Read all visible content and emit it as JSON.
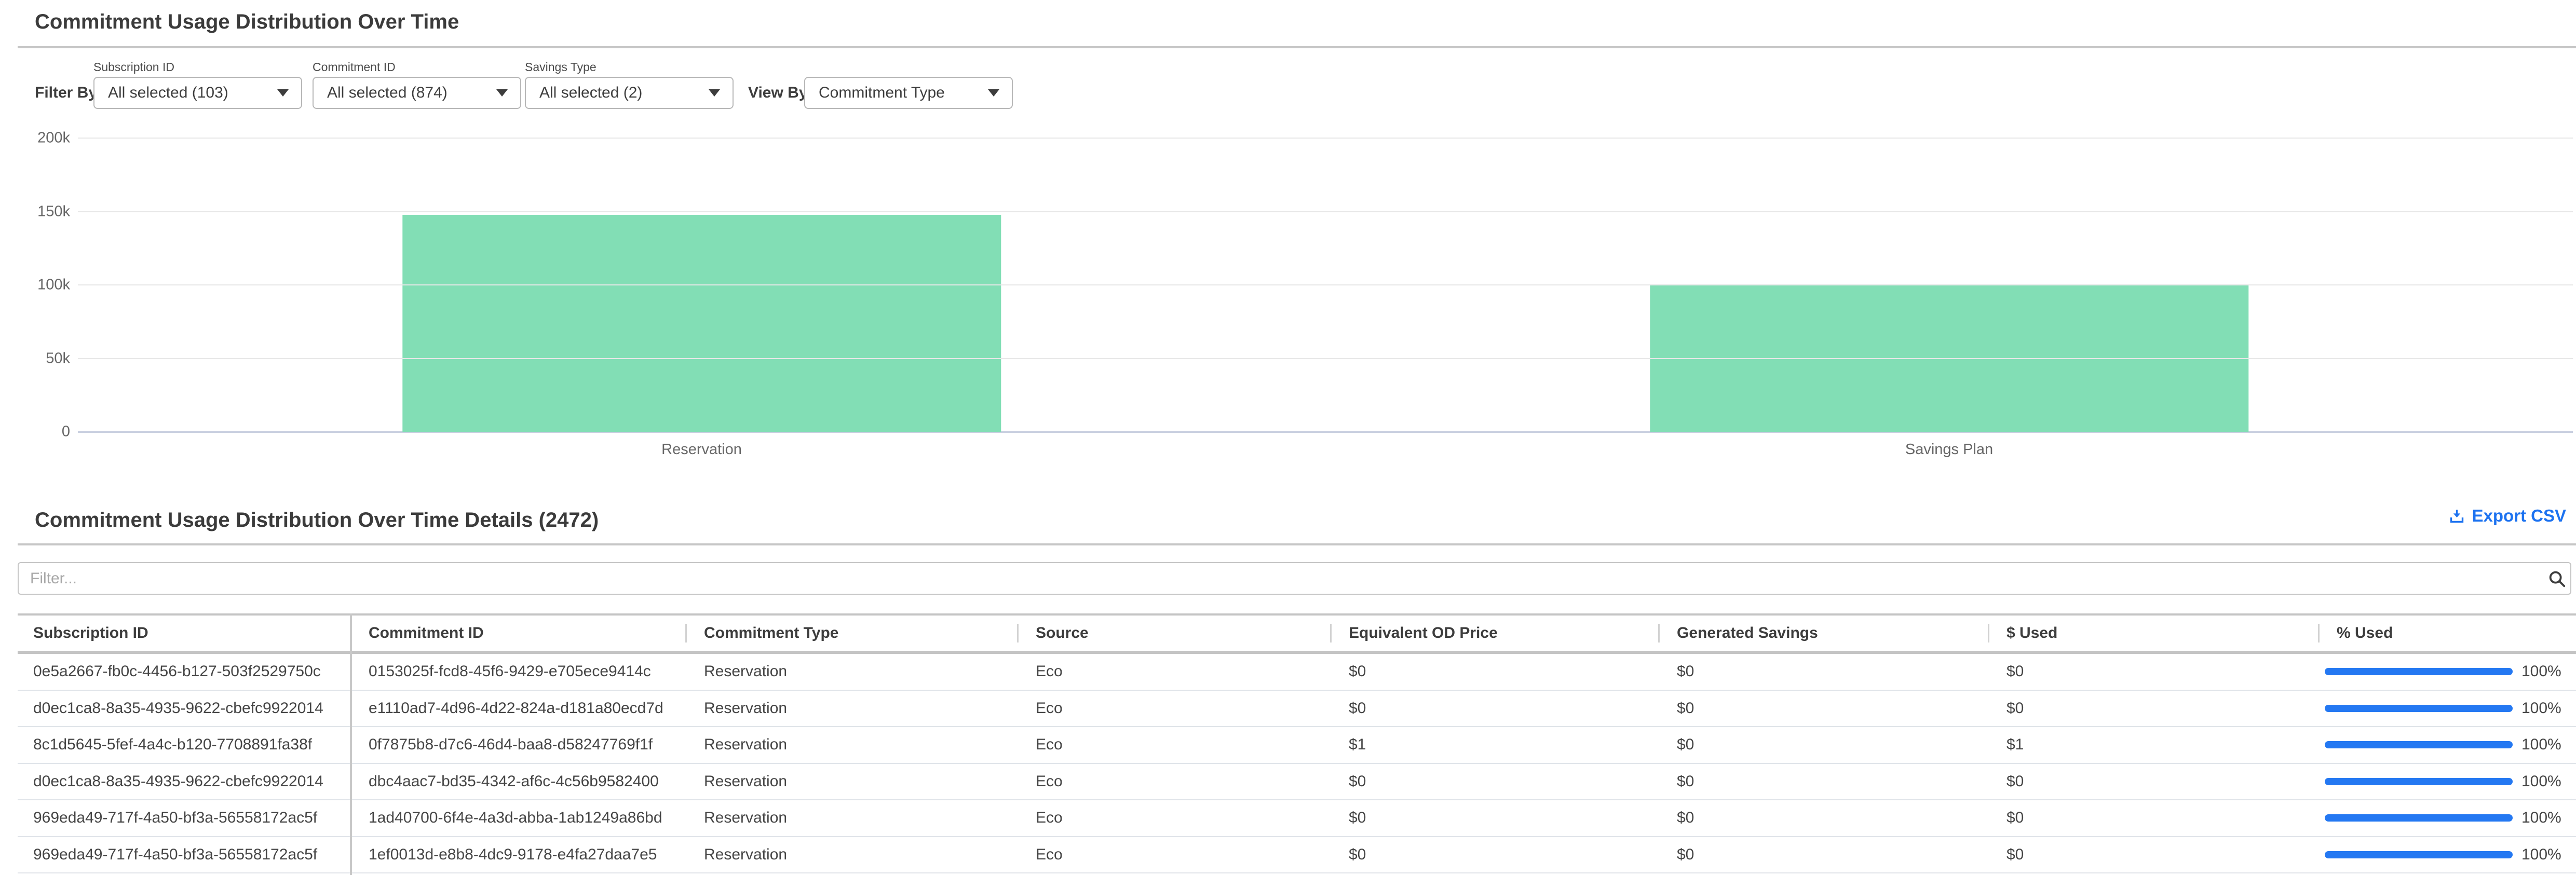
{
  "page": {
    "title": "Commitment Usage Distribution Over Time"
  },
  "filters": {
    "filter_by_label": "Filter By:",
    "view_by_label": "View By:",
    "subscription": {
      "label": "Subscription ID",
      "value": "All selected (103)"
    },
    "commitment": {
      "label": "Commitment ID",
      "value": "All selected (874)"
    },
    "savings_type": {
      "label": "Savings Type",
      "value": "All selected (2)"
    },
    "view_by": {
      "value": "Commitment Type"
    }
  },
  "chart_data": {
    "type": "bar",
    "title": "",
    "categories": [
      "Reservation",
      "Savings Plan"
    ],
    "values": [
      147700,
      99800
    ],
    "xlabel": "",
    "ylabel": "",
    "ylim": [
      0,
      200000
    ],
    "yticks": [
      "200k",
      "150k",
      "100k",
      "50k",
      "0"
    ],
    "grid": true,
    "legend": "none",
    "bar_color": "#82deb5"
  },
  "details": {
    "title": "Commitment Usage Distribution Over Time Details (2472)",
    "export_csv_label": "Export CSV",
    "filter_placeholder": "Filter...",
    "columns": [
      "Subscription ID",
      "Commitment ID",
      "Commitment Type",
      "Source",
      "Equivalent OD Price",
      "Generated Savings",
      "$ Used",
      "% Used"
    ],
    "rows": [
      {
        "subscription_id": "0e5a2667-fb0c-4456-b127-503f2529750c",
        "commitment_id": "0153025f-fcd8-45f6-9429-e705ece9414c",
        "commitment_type": "Reservation",
        "source": "Eco",
        "equivalent_od_price": "$0",
        "generated_savings": "$0",
        "used_dollars": "$0",
        "used_percent": "100%",
        "used_percent_value": 100
      },
      {
        "subscription_id": "d0ec1ca8-8a35-4935-9622-cbefc9922014",
        "commitment_id": "e1110ad7-4d96-4d22-824a-d181a80ecd7d",
        "commitment_type": "Reservation",
        "source": "Eco",
        "equivalent_od_price": "$0",
        "generated_savings": "$0",
        "used_dollars": "$0",
        "used_percent": "100%",
        "used_percent_value": 100
      },
      {
        "subscription_id": "8c1d5645-5fef-4a4c-b120-7708891fa38f",
        "commitment_id": "0f7875b8-d7c6-46d4-baa8-d58247769f1f",
        "commitment_type": "Reservation",
        "source": "Eco",
        "equivalent_od_price": "$1",
        "generated_savings": "$0",
        "used_dollars": "$1",
        "used_percent": "100%",
        "used_percent_value": 100
      },
      {
        "subscription_id": "d0ec1ca8-8a35-4935-9622-cbefc9922014",
        "commitment_id": "dbc4aac7-bd35-4342-af6c-4c56b9582400",
        "commitment_type": "Reservation",
        "source": "Eco",
        "equivalent_od_price": "$0",
        "generated_savings": "$0",
        "used_dollars": "$0",
        "used_percent": "100%",
        "used_percent_value": 100
      },
      {
        "subscription_id": "969eda49-717f-4a50-bf3a-56558172ac5f",
        "commitment_id": "1ad40700-6f4e-4a3d-abba-1ab1249a86bd",
        "commitment_type": "Reservation",
        "source": "Eco",
        "equivalent_od_price": "$0",
        "generated_savings": "$0",
        "used_dollars": "$0",
        "used_percent": "100%",
        "used_percent_value": 100
      },
      {
        "subscription_id": "969eda49-717f-4a50-bf3a-56558172ac5f",
        "commitment_id": "1ef0013d-e8b8-4dc9-9178-e4fa27daa7e5",
        "commitment_type": "Reservation",
        "source": "Eco",
        "equivalent_od_price": "$0",
        "generated_savings": "$0",
        "used_dollars": "$0",
        "used_percent": "100%",
        "used_percent_value": 100
      }
    ]
  },
  "colors": {
    "bar_green": "#82deb5",
    "accent_blue": "#2478f2",
    "link_blue": "#1c72f0"
  }
}
